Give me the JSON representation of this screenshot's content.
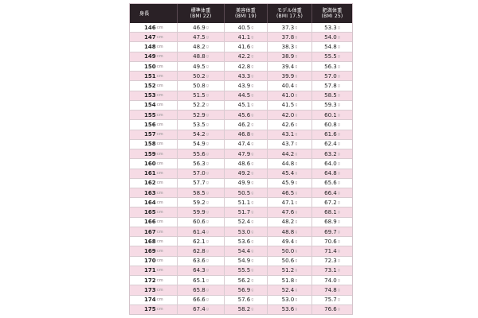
{
  "table": {
    "headers": [
      {
        "line1": "身長",
        "line2": ""
      },
      {
        "line1": "標準体重",
        "line2": "(BMI 22)"
      },
      {
        "line1": "美容体重",
        "line2": "(BMI 19)"
      },
      {
        "line1": "モデル体重",
        "line2": "(BMI 17.5)"
      },
      {
        "line1": "肥満体重",
        "line2": "(BMI 25)"
      }
    ],
    "height_unit": "cm",
    "weight_unit": "g",
    "row_colors": {
      "pink": "#f6dbe5",
      "white": "#ffffff",
      "header": "#2a2126"
    },
    "rows": [
      {
        "height": "146",
        "standard": "46.9",
        "beauty": "40.5",
        "model": "37.3",
        "obese": "53.3"
      },
      {
        "height": "147",
        "standard": "47.5",
        "beauty": "41.1",
        "model": "37.8",
        "obese": "54.0"
      },
      {
        "height": "148",
        "standard": "48.2",
        "beauty": "41.6",
        "model": "38.3",
        "obese": "54.8"
      },
      {
        "height": "149",
        "standard": "48.8",
        "beauty": "42.2",
        "model": "38.9",
        "obese": "55.5"
      },
      {
        "height": "150",
        "standard": "49.5",
        "beauty": "42.8",
        "model": "39.4",
        "obese": "56.3"
      },
      {
        "height": "151",
        "standard": "50.2",
        "beauty": "43.3",
        "model": "39.9",
        "obese": "57.0"
      },
      {
        "height": "152",
        "standard": "50.8",
        "beauty": "43.9",
        "model": "40.4",
        "obese": "57.8"
      },
      {
        "height": "153",
        "standard": "51.5",
        "beauty": "44.5",
        "model": "41.0",
        "obese": "58.5"
      },
      {
        "height": "154",
        "standard": "52.2",
        "beauty": "45.1",
        "model": "41.5",
        "obese": "59.3"
      },
      {
        "height": "155",
        "standard": "52.9",
        "beauty": "45.6",
        "model": "42.0",
        "obese": "60.1"
      },
      {
        "height": "156",
        "standard": "53.5",
        "beauty": "46.2",
        "model": "42.6",
        "obese": "60.8"
      },
      {
        "height": "157",
        "standard": "54.2",
        "beauty": "46.8",
        "model": "43.1",
        "obese": "61.6"
      },
      {
        "height": "158",
        "standard": "54.9",
        "beauty": "47.4",
        "model": "43.7",
        "obese": "62.4"
      },
      {
        "height": "159",
        "standard": "55.6",
        "beauty": "47.9",
        "model": "44.2",
        "obese": "63.2"
      },
      {
        "height": "160",
        "standard": "56.3",
        "beauty": "48.6",
        "model": "44.8",
        "obese": "64.0"
      },
      {
        "height": "161",
        "standard": "57.0",
        "beauty": "49.2",
        "model": "45.4",
        "obese": "64.8"
      },
      {
        "height": "162",
        "standard": "57.7",
        "beauty": "49.9",
        "model": "45.9",
        "obese": "65.6"
      },
      {
        "height": "163",
        "standard": "58.5",
        "beauty": "50.5",
        "model": "46.5",
        "obese": "66.4"
      },
      {
        "height": "164",
        "standard": "59.2",
        "beauty": "51.1",
        "model": "47.1",
        "obese": "67.2"
      },
      {
        "height": "165",
        "standard": "59.9",
        "beauty": "51.7",
        "model": "47.6",
        "obese": "68.1"
      },
      {
        "height": "166",
        "standard": "60.6",
        "beauty": "52.4",
        "model": "48.2",
        "obese": "68.9"
      },
      {
        "height": "167",
        "standard": "61.4",
        "beauty": "53.0",
        "model": "48.8",
        "obese": "69.7"
      },
      {
        "height": "168",
        "standard": "62.1",
        "beauty": "53.6",
        "model": "49.4",
        "obese": "70.6"
      },
      {
        "height": "169",
        "standard": "62.8",
        "beauty": "54.4",
        "model": "50.0",
        "obese": "71.4"
      },
      {
        "height": "170",
        "standard": "63.6",
        "beauty": "54.9",
        "model": "50.6",
        "obese": "72.3"
      },
      {
        "height": "171",
        "standard": "64.3",
        "beauty": "55.5",
        "model": "51.2",
        "obese": "73.1"
      },
      {
        "height": "172",
        "standard": "65.1",
        "beauty": "56.2",
        "model": "51.8",
        "obese": "74.0"
      },
      {
        "height": "173",
        "standard": "65.8",
        "beauty": "56.9",
        "model": "52.4",
        "obese": "74.8"
      },
      {
        "height": "174",
        "standard": "66.6",
        "beauty": "57.6",
        "model": "53.0",
        "obese": "75.7"
      },
      {
        "height": "175",
        "standard": "67.4",
        "beauty": "58.2",
        "model": "53.6",
        "obese": "76.6"
      }
    ]
  }
}
